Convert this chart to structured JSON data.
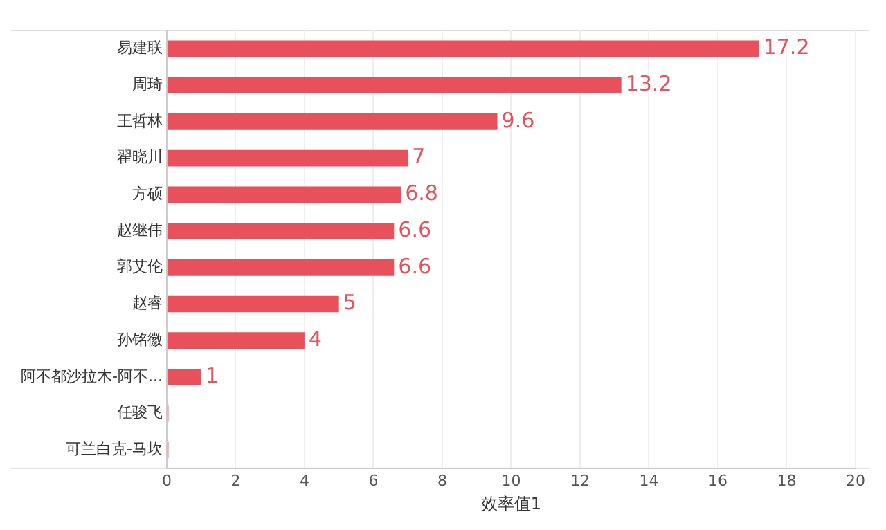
{
  "chart_data": {
    "type": "bar",
    "orientation": "horizontal",
    "categories": [
      "易建联",
      "周琦",
      "王哲林",
      "翟晓川",
      "方硕",
      "赵继伟",
      "郭艾伦",
      "赵睿",
      "孙铭徽",
      "阿不都沙拉木-阿不...",
      "任骏飞",
      "可兰白克-马坎"
    ],
    "values": [
      17.2,
      13.2,
      9.6,
      7,
      6.8,
      6.6,
      6.6,
      5,
      4,
      1,
      0.05,
      0.05
    ],
    "value_labels": [
      "17.2",
      "13.2",
      "9.6",
      "7",
      "6.8",
      "6.6",
      "6.6",
      "5",
      "4",
      "1",
      null,
      null
    ],
    "color": "#e8505b",
    "xlabel": "效率值1",
    "xlim": [
      0,
      20
    ],
    "xticks": [
      0,
      2,
      4,
      6,
      8,
      10,
      12,
      14,
      16,
      18,
      20
    ],
    "grid": "x",
    "legend": false
  }
}
